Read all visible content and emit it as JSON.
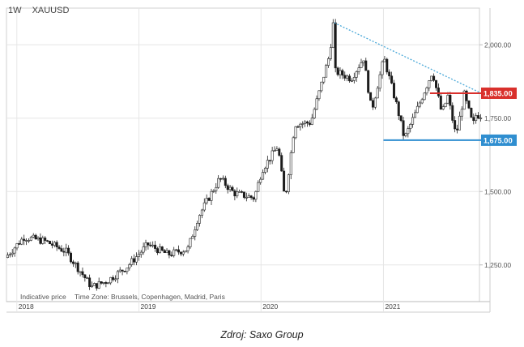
{
  "header": {
    "interval": "1W",
    "symbol": "XAUUSD"
  },
  "footer": {
    "indicative": "Indicative price",
    "timezone": "Time Zone: Brussels, Copenhagen, Madrid, Paris"
  },
  "source": "Zdroj: Saxo Group",
  "colors": {
    "up": "#ffffff",
    "down": "#1a1a1a",
    "trendline": "#4aa8d8",
    "resistance": "#d9302c",
    "support": "#2f8ed0",
    "grid": "#e6e6e6"
  },
  "chart_data": {
    "type": "candlestick",
    "y_range": [
      1125,
      2125
    ],
    "y_ticks": [
      {
        "value": 2000,
        "label": "2,000.00"
      },
      {
        "value": 1750,
        "label": "1,750.00"
      },
      {
        "value": 1500,
        "label": "1,500.00"
      },
      {
        "value": 1250,
        "label": "1,250.00"
      }
    ],
    "x_ticks": [
      {
        "date": "2018-01-01",
        "label": "2018"
      },
      {
        "date": "2019-01-01",
        "label": "2019"
      },
      {
        "date": "2020-01-01",
        "label": "2020"
      },
      {
        "date": "2021-01-01",
        "label": "2021"
      }
    ],
    "x_range": [
      "2017-12-01",
      "2021-10-15"
    ],
    "levels": [
      {
        "name": "resistance",
        "value": 1835,
        "label": "1,835",
        "label_decimals": ".00",
        "from": "2021-05-20"
      },
      {
        "name": "support",
        "value": 1675,
        "label": "1,675",
        "label_decimals": ".00",
        "from": "2021-01-01"
      }
    ],
    "trendline": [
      {
        "date": "2020-08-07",
        "value": 2075
      },
      {
        "date": "2021-10-15",
        "value": 1838
      }
    ],
    "price_path": [
      [
        "2017-12-01",
        1275
      ],
      [
        "2018-01-26",
        1345
      ],
      [
        "2018-04-01",
        1330
      ],
      [
        "2018-06-01",
        1295
      ],
      [
        "2018-08-16",
        1175
      ],
      [
        "2018-10-01",
        1195
      ],
      [
        "2018-12-01",
        1245
      ],
      [
        "2019-01-31",
        1320
      ],
      [
        "2019-04-01",
        1285
      ],
      [
        "2019-05-31",
        1305
      ],
      [
        "2019-07-01",
        1415
      ],
      [
        "2019-09-03",
        1545
      ],
      [
        "2019-10-15",
        1495
      ],
      [
        "2019-12-15",
        1478
      ],
      [
        "2020-01-08",
        1575
      ],
      [
        "2020-02-24",
        1655
      ],
      [
        "2020-03-16",
        1470
      ],
      [
        "2020-04-14",
        1730
      ],
      [
        "2020-06-01",
        1735
      ],
      [
        "2020-07-27",
        1965
      ],
      [
        "2020-08-07",
        2070
      ],
      [
        "2020-08-12",
        1910
      ],
      [
        "2020-09-30",
        1885
      ],
      [
        "2020-11-06",
        1955
      ],
      [
        "2020-11-30",
        1775
      ],
      [
        "2021-01-06",
        1955
      ],
      [
        "2021-02-15",
        1785
      ],
      [
        "2021-03-08",
        1680
      ],
      [
        "2021-04-15",
        1780
      ],
      [
        "2021-05-31",
        1910
      ],
      [
        "2021-06-28",
        1765
      ],
      [
        "2021-07-16",
        1825
      ],
      [
        "2021-08-09",
        1690
      ],
      [
        "2021-09-03",
        1830
      ],
      [
        "2021-09-29",
        1725
      ],
      [
        "2021-10-08",
        1760
      ]
    ]
  }
}
